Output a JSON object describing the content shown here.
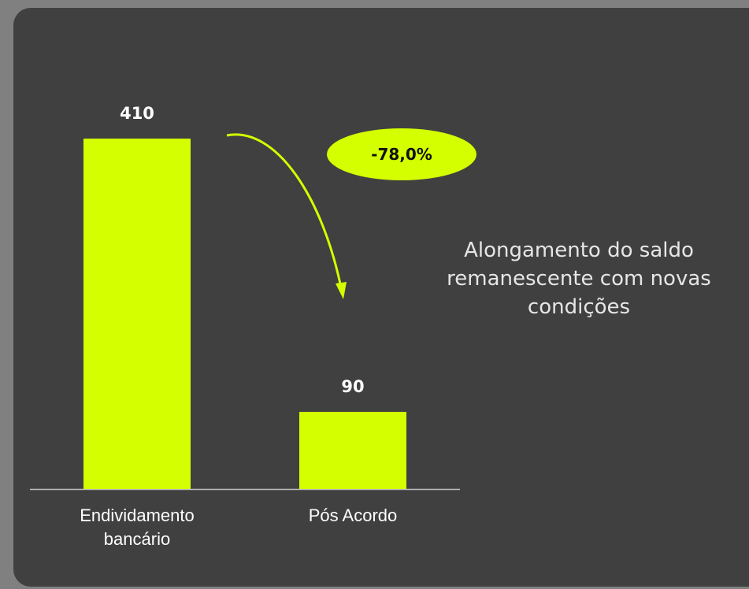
{
  "chart_data": {
    "type": "bar",
    "categories": [
      "Endividamento bancário",
      "Pós Acordo"
    ],
    "values": [
      410,
      90
    ],
    "color": "#d4ff00",
    "annotations": [
      "-78,0%",
      "Alongamento do saldo remanescente com novas condições"
    ]
  }
}
